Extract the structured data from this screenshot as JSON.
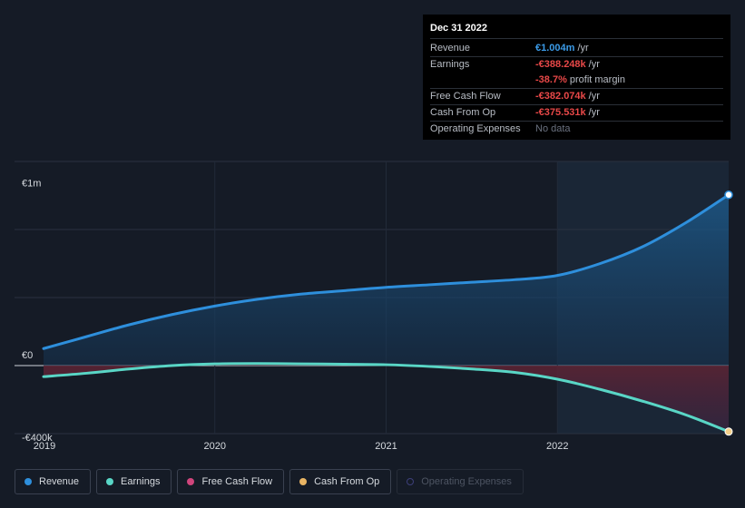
{
  "tooltip": {
    "date": "Dec 31 2022",
    "rows": [
      {
        "label": "Revenue",
        "value": "€1.004m",
        "unit": "/yr",
        "color": "#3b9be8"
      },
      {
        "label": "Earnings",
        "value": "-€388.248k",
        "unit": "/yr",
        "color": "#e84848"
      },
      {
        "label": "",
        "value": "-38.7%",
        "unit": "profit margin",
        "color": "#e84848"
      },
      {
        "label": "Free Cash Flow",
        "value": "-€382.074k",
        "unit": "/yr",
        "color": "#e84848"
      },
      {
        "label": "Cash From Op",
        "value": "-€375.531k",
        "unit": "/yr",
        "color": "#e84848"
      },
      {
        "label": "Operating Expenses",
        "value": "No data",
        "unit": "",
        "color": "#6b7280"
      }
    ]
  },
  "legend": [
    {
      "label": "Revenue",
      "color": "#2e8fdc",
      "dim": false,
      "icon": "revenue-dot-icon"
    },
    {
      "label": "Earnings",
      "color": "#59d6c6",
      "dim": false,
      "icon": "earnings-dot-icon"
    },
    {
      "label": "Free Cash Flow",
      "color": "#d0457c",
      "dim": false,
      "icon": "free-cash-flow-dot-icon"
    },
    {
      "label": "Cash From Op",
      "color": "#e8b464",
      "dim": false,
      "icon": "cash-from-op-dot-icon"
    },
    {
      "label": "Operating Expenses",
      "color": "#3d3f7a",
      "dim": true,
      "icon": "operating-expenses-dot-icon"
    }
  ],
  "chart_data": {
    "type": "area",
    "y_tick_labels": [
      "€1m",
      "€0",
      "-€400k"
    ],
    "x_tick_labels": [
      "2019",
      "2020",
      "2021",
      "2022"
    ],
    "ylim": [
      -400000,
      1200000
    ],
    "xlim": [
      2019.0,
      2023.0
    ],
    "series": [
      {
        "name": "Revenue",
        "color": "#2e8fdc",
        "x": [
          2019.0,
          2019.25,
          2019.5,
          2019.75,
          2020.0,
          2020.25,
          2020.5,
          2020.75,
          2021.0,
          2021.25,
          2021.5,
          2021.75,
          2022.0,
          2022.25,
          2022.5,
          2022.75,
          2023.0
        ],
        "values": [
          100000,
          170000,
          240000,
          300000,
          350000,
          390000,
          420000,
          440000,
          460000,
          475000,
          490000,
          505000,
          530000,
          600000,
          700000,
          840000,
          1004000
        ]
      },
      {
        "name": "Earnings",
        "color": "#59d6c6",
        "x": [
          2019.0,
          2019.25,
          2019.5,
          2019.75,
          2020.0,
          2020.25,
          2020.5,
          2020.75,
          2021.0,
          2021.25,
          2021.5,
          2021.75,
          2022.0,
          2022.25,
          2022.5,
          2022.75,
          2023.0
        ],
        "values": [
          -65000,
          -45000,
          -20000,
          0,
          10000,
          12000,
          10000,
          8000,
          5000,
          -5000,
          -20000,
          -40000,
          -80000,
          -140000,
          -210000,
          -290000,
          -388248
        ]
      }
    ],
    "highlight_from": 2022.0,
    "grid": true
  }
}
